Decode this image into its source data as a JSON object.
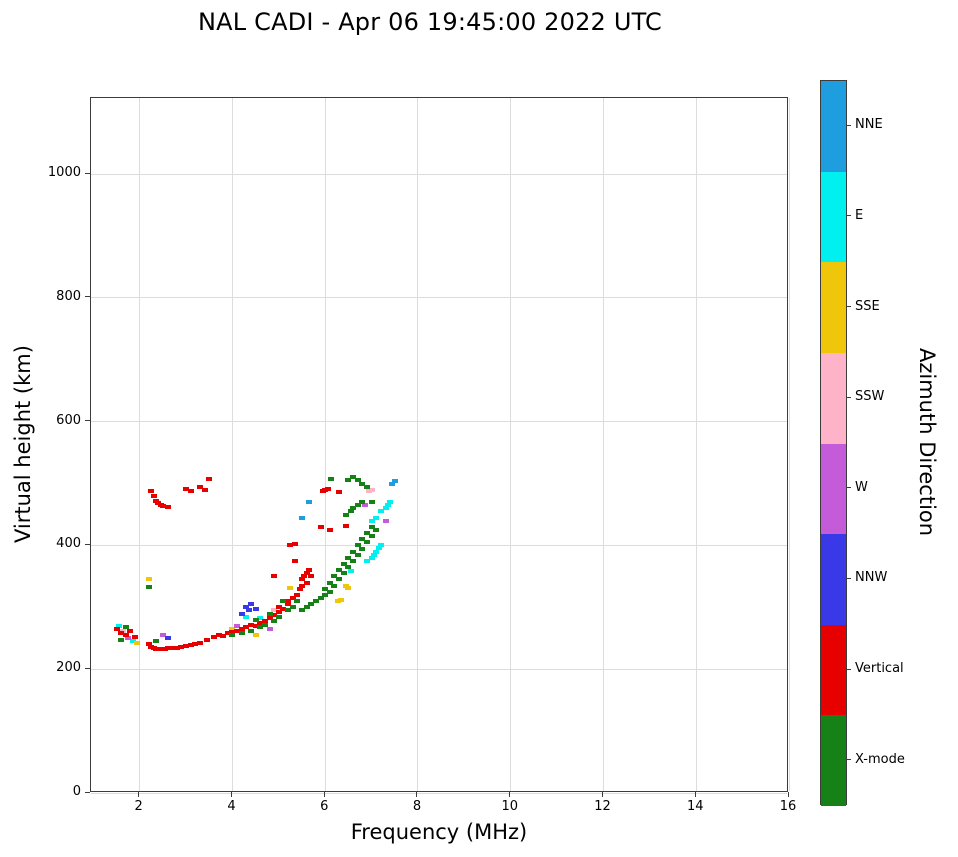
{
  "title": "NAL CADI - Apr 06 19:45:00 2022 UTC",
  "axes": {
    "xlabel": "Frequency (MHz)",
    "ylabel": "Virtual height (km)",
    "x_ticks": [
      2,
      4,
      6,
      8,
      10,
      12,
      14,
      16
    ],
    "y_ticks": [
      0,
      200,
      400,
      600,
      800,
      1000
    ]
  },
  "colorbar": {
    "title": "Azimuth Direction",
    "entries": [
      {
        "label": "NNE",
        "color": "#1e9ede"
      },
      {
        "label": "E",
        "color": "#00efef"
      },
      {
        "label": "SSE",
        "color": "#f0c60a"
      },
      {
        "label": "SSW",
        "color": "#ffb3c8"
      },
      {
        "label": "W",
        "color": "#c45bd8"
      },
      {
        "label": "NNW",
        "color": "#3939e8"
      },
      {
        "label": "Vertical",
        "color": "#e60000"
      },
      {
        "label": "X-mode",
        "color": "#168116"
      }
    ]
  },
  "chart_data": {
    "type": "scatter",
    "title": "NAL CADI - Apr 06 19:45:00 2022 UTC",
    "xlabel": "Frequency (MHz)",
    "ylabel": "Virtual height (km)",
    "xlim": [
      0.95,
      16
    ],
    "ylim": [
      0,
      1123
    ],
    "grid": true,
    "legend": "colorbar-right",
    "series": [
      {
        "name": "NNE",
        "color": "#1e9ede",
        "points": [
          [
            5.5,
            445
          ],
          [
            5.65,
            470
          ],
          [
            7.45,
            500
          ],
          [
            7.5,
            504
          ]
        ]
      },
      {
        "name": "E",
        "color": "#00efef",
        "points": [
          [
            1.55,
            270
          ],
          [
            1.85,
            246
          ],
          [
            4.3,
            285
          ],
          [
            4.6,
            282
          ],
          [
            6.55,
            358
          ],
          [
            6.9,
            375
          ],
          [
            7.0,
            380
          ],
          [
            7.05,
            385
          ],
          [
            7.1,
            390
          ],
          [
            7.15,
            396
          ],
          [
            7.2,
            400
          ],
          [
            7.0,
            440
          ],
          [
            7.1,
            445
          ],
          [
            7.2,
            455
          ],
          [
            7.3,
            460
          ],
          [
            7.35,
            465
          ],
          [
            7.4,
            470
          ]
        ]
      },
      {
        "name": "SSE",
        "color": "#f0c60a",
        "points": [
          [
            1.95,
            242
          ],
          [
            2.2,
            345
          ],
          [
            4.0,
            265
          ],
          [
            4.5,
            255
          ],
          [
            5.25,
            331
          ],
          [
            6.27,
            310
          ],
          [
            6.35,
            312
          ],
          [
            6.45,
            335
          ],
          [
            6.5,
            332
          ]
        ]
      },
      {
        "name": "SSW",
        "color": "#ffb3c8",
        "points": [
          [
            1.65,
            262
          ],
          [
            4.9,
            296
          ],
          [
            6.95,
            488
          ],
          [
            7.0,
            490
          ]
        ]
      },
      {
        "name": "W",
        "color": "#c45bd8",
        "points": [
          [
            1.75,
            250
          ],
          [
            2.5,
            255
          ],
          [
            4.1,
            270
          ],
          [
            4.8,
            265
          ],
          [
            6.85,
            465
          ],
          [
            7.3,
            440
          ]
        ]
      },
      {
        "name": "NNW",
        "color": "#3939e8",
        "points": [
          [
            2.6,
            250
          ],
          [
            4.2,
            290
          ],
          [
            4.3,
            300
          ],
          [
            4.35,
            295
          ],
          [
            4.4,
            305
          ],
          [
            4.5,
            298
          ]
        ]
      },
      {
        "name": "Vertical",
        "color": "#e60000",
        "points": [
          [
            1.5,
            265
          ],
          [
            1.6,
            258
          ],
          [
            1.7,
            255
          ],
          [
            1.8,
            262
          ],
          [
            1.9,
            252
          ],
          [
            2.2,
            240
          ],
          [
            2.25,
            236
          ],
          [
            2.3,
            234
          ],
          [
            2.35,
            233
          ],
          [
            2.4,
            232
          ],
          [
            2.45,
            233
          ],
          [
            2.5,
            232
          ],
          [
            2.55,
            233
          ],
          [
            2.6,
            234
          ],
          [
            2.7,
            234
          ],
          [
            2.8,
            235
          ],
          [
            2.9,
            236
          ],
          [
            3.0,
            238
          ],
          [
            3.1,
            239
          ],
          [
            3.2,
            240
          ],
          [
            3.3,
            243
          ],
          [
            3.45,
            247
          ],
          [
            2.25,
            488
          ],
          [
            2.3,
            480
          ],
          [
            2.35,
            472
          ],
          [
            2.4,
            468
          ],
          [
            2.45,
            465
          ],
          [
            2.5,
            463
          ],
          [
            2.6,
            462
          ],
          [
            3.0,
            492
          ],
          [
            3.1,
            488
          ],
          [
            3.3,
            495
          ],
          [
            3.4,
            490
          ],
          [
            3.5,
            507
          ],
          [
            3.6,
            252
          ],
          [
            3.7,
            255
          ],
          [
            3.8,
            253
          ],
          [
            3.9,
            258
          ],
          [
            4.0,
            260
          ],
          [
            4.1,
            262
          ],
          [
            4.2,
            265
          ],
          [
            4.3,
            268
          ],
          [
            4.4,
            272
          ],
          [
            4.5,
            270
          ],
          [
            4.6,
            275
          ],
          [
            4.7,
            278
          ],
          [
            4.8,
            282
          ],
          [
            4.9,
            288
          ],
          [
            4.9,
            350
          ],
          [
            5.0,
            292
          ],
          [
            5.0,
            300
          ],
          [
            5.1,
            298
          ],
          [
            5.2,
            305
          ],
          [
            5.2,
            310
          ],
          [
            5.3,
            315
          ],
          [
            5.35,
            375
          ],
          [
            5.4,
            320
          ],
          [
            5.45,
            330
          ],
          [
            5.5,
            335
          ],
          [
            5.5,
            345
          ],
          [
            5.55,
            350
          ],
          [
            5.6,
            340
          ],
          [
            5.6,
            355
          ],
          [
            5.65,
            360
          ],
          [
            5.7,
            350
          ],
          [
            5.25,
            400
          ],
          [
            5.35,
            402
          ],
          [
            5.9,
            430
          ],
          [
            5.95,
            488
          ],
          [
            6.0,
            490
          ],
          [
            6.05,
            492
          ],
          [
            6.1,
            425
          ],
          [
            6.3,
            486
          ],
          [
            6.45,
            431
          ]
        ]
      },
      {
        "name": "X-mode",
        "color": "#168116",
        "points": [
          [
            1.6,
            247
          ],
          [
            1.7,
            268
          ],
          [
            2.35,
            246
          ],
          [
            2.2,
            333
          ],
          [
            4.0,
            255
          ],
          [
            4.2,
            258
          ],
          [
            4.4,
            262
          ],
          [
            4.5,
            280
          ],
          [
            4.6,
            268
          ],
          [
            4.7,
            272
          ],
          [
            4.8,
            290
          ],
          [
            4.9,
            278
          ],
          [
            5.0,
            285
          ],
          [
            5.1,
            310
          ],
          [
            5.2,
            295
          ],
          [
            5.3,
            300
          ],
          [
            5.4,
            310
          ],
          [
            5.5,
            295
          ],
          [
            5.6,
            300
          ],
          [
            5.7,
            305
          ],
          [
            5.8,
            310
          ],
          [
            5.9,
            315
          ],
          [
            6.0,
            320
          ],
          [
            6.0,
            330
          ],
          [
            6.1,
            325
          ],
          [
            6.1,
            340
          ],
          [
            6.2,
            335
          ],
          [
            6.2,
            350
          ],
          [
            6.3,
            345
          ],
          [
            6.3,
            360
          ],
          [
            6.4,
            355
          ],
          [
            6.4,
            370
          ],
          [
            6.5,
            365
          ],
          [
            6.5,
            380
          ],
          [
            6.6,
            375
          ],
          [
            6.6,
            390
          ],
          [
            6.7,
            385
          ],
          [
            6.7,
            400
          ],
          [
            6.8,
            395
          ],
          [
            6.8,
            410
          ],
          [
            6.9,
            405
          ],
          [
            6.9,
            420
          ],
          [
            7.0,
            415
          ],
          [
            7.0,
            430
          ],
          [
            7.1,
            425
          ],
          [
            6.45,
            450
          ],
          [
            6.55,
            455
          ],
          [
            6.6,
            460
          ],
          [
            6.7,
            465
          ],
          [
            6.8,
            470
          ],
          [
            7.0,
            470
          ],
          [
            6.12,
            507
          ],
          [
            6.5,
            505
          ],
          [
            6.6,
            510
          ],
          [
            6.7,
            505
          ],
          [
            6.8,
            500
          ],
          [
            6.9,
            495
          ]
        ]
      }
    ]
  }
}
